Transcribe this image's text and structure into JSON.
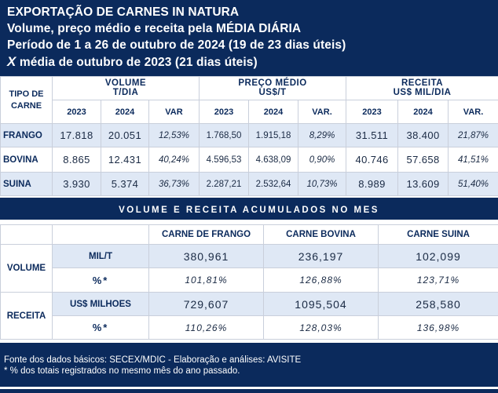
{
  "header": {
    "line1": "EXPORTAÇÃO DE CARNES IN NATURA",
    "line2": "Volume, preço médio e receita pela MÉDIA DIÁRIA",
    "line3": "Período de 1 a 26 de outubro de 2024 (19 de 23 dias úteis)",
    "line4_x": "X",
    "line4_rest": " média de outubro de 2023 (21 dias úteis)"
  },
  "table1": {
    "tipo_label": "TIPO DE CARNE",
    "volume_label1": "VOLUME",
    "volume_label2": "T/DIA",
    "preco_label1": "PREÇO MÉDIO",
    "preco_label2": "US$/T",
    "receita_label1": "RECEITA",
    "receita_label2": "US$ MIL/DIA",
    "sub": {
      "y2023": "2023",
      "y2024": "2024",
      "var": "VAR",
      "var_dot": "VAR."
    },
    "rows": [
      {
        "name": "FRANGO",
        "v23": "17.818",
        "v24": "20.051",
        "vvar": "12,53%",
        "p23": "1.768,50",
        "p24": "1.915,18",
        "pvar": "8,29%",
        "r23": "31.511",
        "r24": "38.400",
        "rvar": "21,87%"
      },
      {
        "name": "BOVINA",
        "v23": "8.865",
        "v24": "12.431",
        "vvar": "40,24%",
        "p23": "4.596,53",
        "p24": "4.638,09",
        "pvar": "0,90%",
        "r23": "40.746",
        "r24": "57.658",
        "rvar": "41,51%"
      },
      {
        "name": "SUINA",
        "v23": "3.930",
        "v24": "5.374",
        "vvar": "36,73%",
        "p23": "2.287,21",
        "p24": "2.532,64",
        "pvar": "10,73%",
        "r23": "8.989",
        "r24": "13.609",
        "rvar": "51,40%"
      }
    ]
  },
  "table2": {
    "title": "VOLUME E RECEITA ACUMULADOS NO MES",
    "col_frango": "CARNE DE FRANGO",
    "col_bovina": "CARNE BOVINA",
    "col_suina": "CARNE SUINA",
    "volume_label": "VOLUME",
    "volume_unit": "MIL/T",
    "volume_values": [
      "380,961",
      "236,197",
      "102,099"
    ],
    "pct_label": "%*",
    "volume_pct": [
      "101,81%",
      "126,88%",
      "123,71%"
    ],
    "receita_label": "RECEITA",
    "receita_unit": "US$ MILHOES",
    "receita_values": [
      "729,607",
      "1095,504",
      "258,580"
    ],
    "receita_pct": [
      "110,26%",
      "128,03%",
      "136,98%"
    ]
  },
  "footer": {
    "line1": "Fonte dos dados básicos: SECEX/MDIC - Elaboração e análises: AVISITE",
    "line2": "*  % dos totais registrados no mesmo mês do ano passado."
  }
}
